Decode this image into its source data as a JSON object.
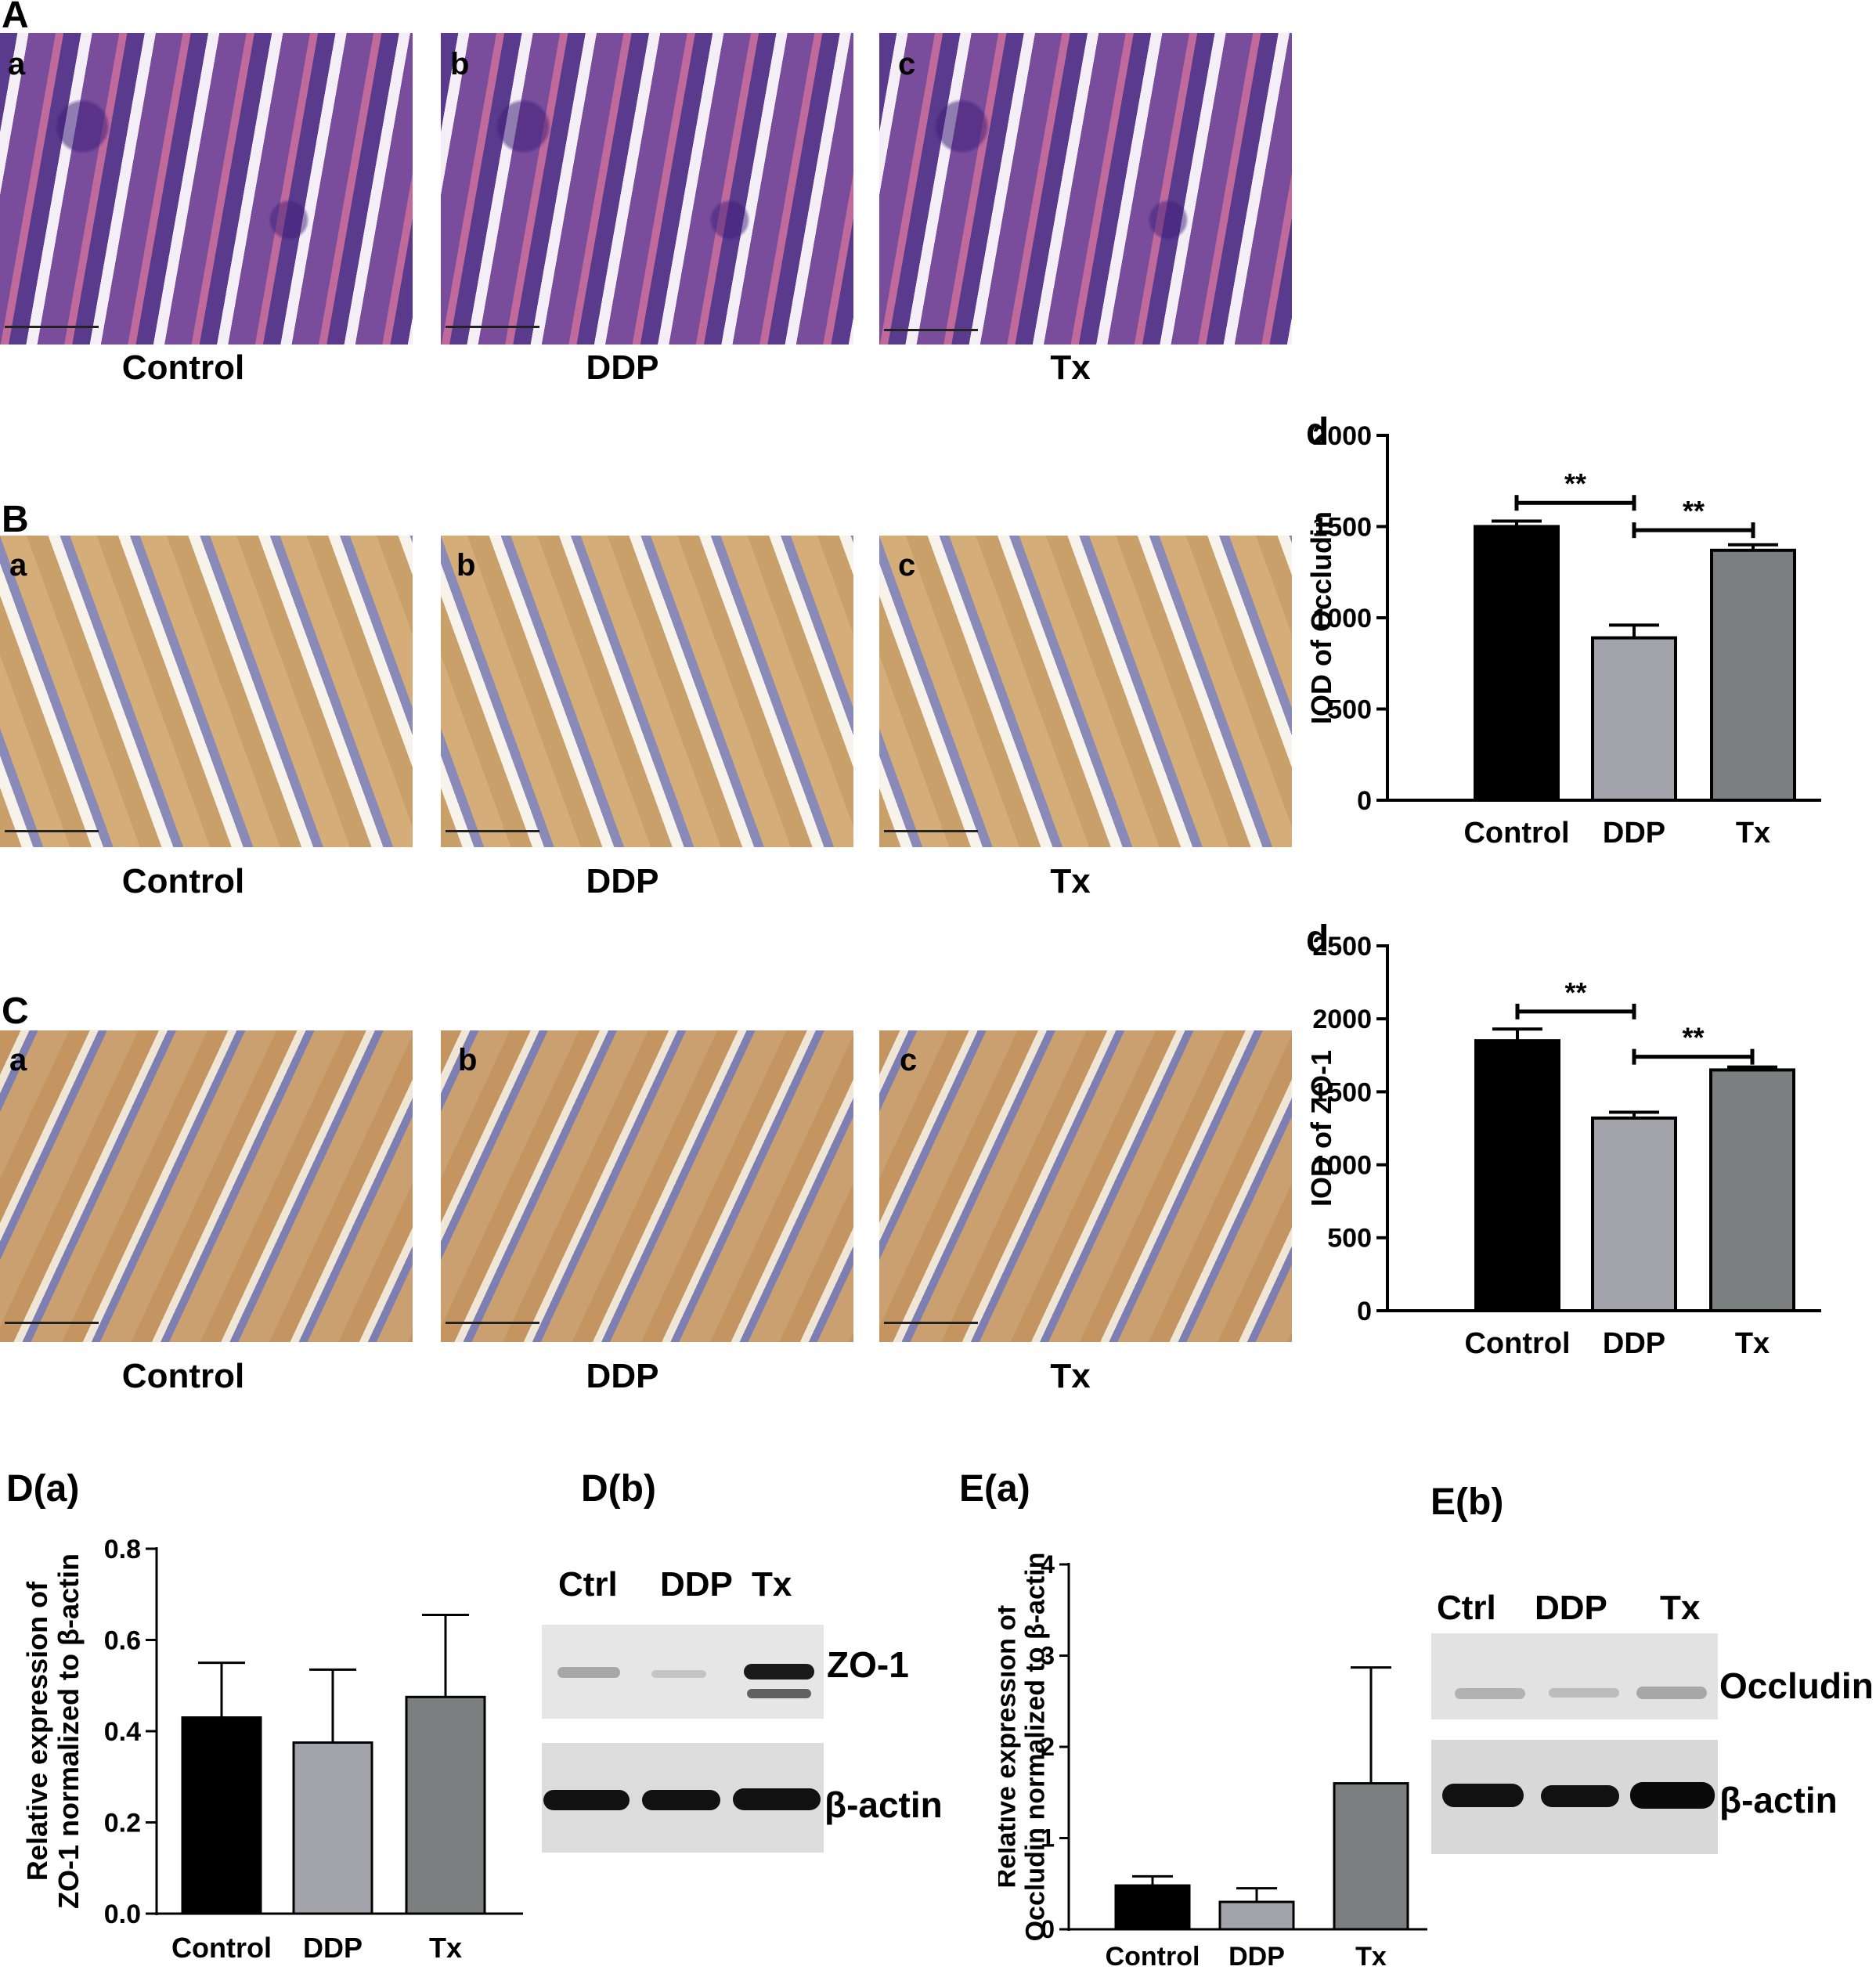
{
  "panels": {
    "A": "A",
    "B": "B",
    "C": "C",
    "Da": "D(a)",
    "Db": "D(b)",
    "Ea": "E(a)",
    "Eb": "E(b)"
  },
  "sub_letters": {
    "a": "a",
    "b": "b",
    "c": "c"
  },
  "captions": {
    "control": "Control",
    "ddp": "DDP",
    "tx": "Tx"
  },
  "chart_panel_letter": "d",
  "blots": {
    "lanes": [
      "Ctrl",
      "DDP",
      "Tx"
    ],
    "zo1_label": "ZO-1",
    "occludin_label": "Occludin",
    "actin_label": "β-actin"
  },
  "colors": {
    "control": "#000000",
    "ddp": "#a3a3ab",
    "tx": "#7c7f80"
  },
  "chart_data": [
    {
      "id": "occludin_iod",
      "type": "bar",
      "categories": [
        "Control",
        "DDP",
        "Tx"
      ],
      "values": [
        1500,
        890,
        1370
      ],
      "errors": [
        30,
        70,
        30
      ],
      "ylabel": "IOD of Occludin",
      "ylim": [
        0,
        2000
      ],
      "yticks": [
        0,
        500,
        1000,
        1500,
        2000
      ],
      "significance": [
        {
          "from": 0,
          "to": 1,
          "label": "**",
          "y": 1630
        },
        {
          "from": 1,
          "to": 2,
          "label": "**",
          "y": 1480
        }
      ]
    },
    {
      "id": "zo1_iod",
      "type": "bar",
      "categories": [
        "Control",
        "DDP",
        "Tx"
      ],
      "values": [
        1850,
        1320,
        1650
      ],
      "errors": [
        80,
        40,
        20
      ],
      "ylabel": "IOD of ZO-1",
      "ylim": [
        0,
        2500
      ],
      "yticks": [
        0,
        500,
        1000,
        1500,
        2000,
        2500
      ],
      "significance": [
        {
          "from": 0,
          "to": 1,
          "label": "**",
          "y": 2050
        },
        {
          "from": 1,
          "to": 2,
          "label": "**",
          "y": 1740
        }
      ]
    },
    {
      "id": "zo1_relative",
      "type": "bar",
      "categories": [
        "Control",
        "DDP",
        "Tx"
      ],
      "values": [
        0.43,
        0.375,
        0.475
      ],
      "errors": [
        0.12,
        0.16,
        0.18
      ],
      "ylabel": "Relative expression of ZO-1 normalized to β-actin",
      "ylim": [
        0,
        0.8
      ],
      "yticks": [
        "0.0",
        "0.2",
        "0.4",
        "0.6",
        "0.8"
      ]
    },
    {
      "id": "occludin_relative",
      "type": "bar",
      "categories": [
        "Control",
        "DDP",
        "Tx"
      ],
      "values": [
        0.48,
        0.3,
        1.6
      ],
      "errors": [
        0.1,
        0.15,
        1.27
      ],
      "ylabel": "Relative expression of Occludin normalized to β-actin",
      "ylim": [
        0,
        4
      ],
      "yticks": [
        "0",
        "1",
        "2",
        "3",
        "4"
      ]
    }
  ]
}
